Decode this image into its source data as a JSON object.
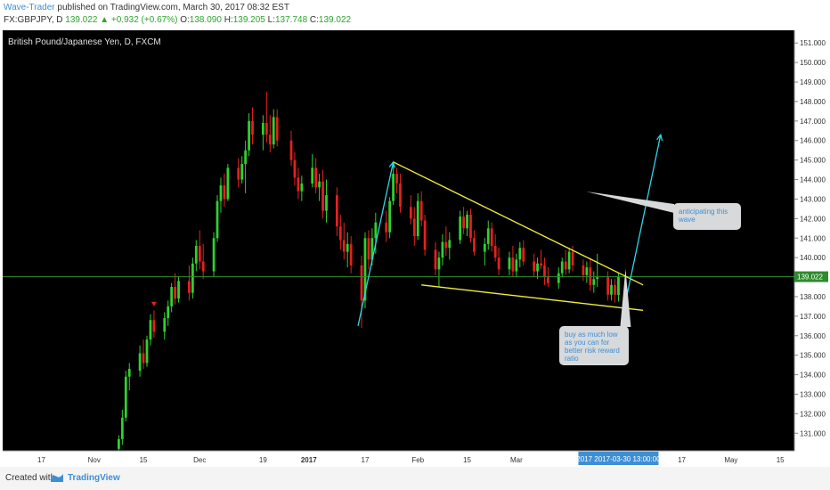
{
  "header": {
    "author": "Wave-Trader",
    "published": "published on TradingView.com, March 30, 2017 08:32 EST",
    "symbol": "FX:GBPJPY, D",
    "last": "139.022",
    "change": "▲ +0.932 (+0.67%)",
    "open_label": "O:",
    "open": "138.090",
    "high_label": "H:",
    "high": "139.205",
    "low_label": "L:",
    "low": "137.748",
    "close_label": "C:",
    "close": "139.022"
  },
  "footer": {
    "created_with": "Created with",
    "brand": "TradingView"
  },
  "colors": {
    "background": "#000000",
    "up": "#2fd12f",
    "down": "#e3211f",
    "trendline": "#f4ef3c",
    "arrow": "#2fd6e6",
    "priceline": "#2e8b2e",
    "axis_bg": "#ffffff"
  },
  "chart_data": {
    "type": "candlestick",
    "title": "British Pound/Japanese Yen, D, FXCM",
    "y_axis": {
      "min": 130,
      "max": 151,
      "ticks": [
        131,
        132,
        133,
        134,
        135,
        136,
        137,
        138,
        139,
        140,
        141,
        142,
        143,
        144,
        145,
        146,
        147,
        148,
        149,
        150,
        151
      ],
      "tick_labels": [
        "131.000",
        "132.000",
        "133.000",
        "134.000",
        "135.000",
        "136.000",
        "137.000",
        "138.000",
        "139.000",
        "140.000",
        "141.000",
        "142.000",
        "143.000",
        "144.000",
        "145.000",
        "146.000",
        "147.000",
        "148.000",
        "149.000",
        "150.000",
        "151.000"
      ]
    },
    "x_axis": {
      "start_date": "2016-10-06",
      "end_date": "2017-05-19",
      "ticks": [
        {
          "date": "2016-10-17",
          "label": "17"
        },
        {
          "date": "2016-11-01",
          "label": "Nov"
        },
        {
          "date": "2016-11-15",
          "label": "15"
        },
        {
          "date": "2016-12-01",
          "label": "Dec"
        },
        {
          "date": "2016-12-19",
          "label": "19"
        },
        {
          "date": "2017-01-01",
          "label": "2017"
        },
        {
          "date": "2017-01-17",
          "label": "17"
        },
        {
          "date": "2017-02-01",
          "label": "Feb"
        },
        {
          "date": "2017-02-15",
          "label": "15"
        },
        {
          "date": "2017-03-01",
          "label": "Mar"
        },
        {
          "date": "2017-04-17",
          "label": "17"
        },
        {
          "date": "2017-05-01",
          "label": "May"
        },
        {
          "date": "2017-05-15",
          "label": "15"
        }
      ],
      "cursor_label": "2017 2017-03-30 13:00:00",
      "cursor_date": "2017-03-30"
    },
    "last_price": 139.022,
    "last_price_label": "139.022",
    "candles": [
      {
        "date": "2016-11-08",
        "o": 130.2,
        "h": 130.9,
        "l": 130.0,
        "c": 130.7
      },
      {
        "date": "2016-11-09",
        "o": 130.7,
        "h": 132.2,
        "l": 130.4,
        "c": 131.8
      },
      {
        "date": "2016-11-10",
        "o": 131.8,
        "h": 134.2,
        "l": 131.6,
        "c": 133.9
      },
      {
        "date": "2016-11-11",
        "o": 133.9,
        "h": 134.6,
        "l": 133.2,
        "c": 134.3
      },
      {
        "date": "2016-11-14",
        "o": 134.2,
        "h": 135.5,
        "l": 133.9,
        "c": 135.1
      },
      {
        "date": "2016-11-15",
        "o": 135.1,
        "h": 135.8,
        "l": 134.3,
        "c": 134.6
      },
      {
        "date": "2016-11-16",
        "o": 134.6,
        "h": 136.0,
        "l": 134.4,
        "c": 135.8
      },
      {
        "date": "2016-11-17",
        "o": 135.8,
        "h": 137.1,
        "l": 135.5,
        "c": 136.8
      },
      {
        "date": "2016-11-18",
        "o": 136.8,
        "h": 137.3,
        "l": 135.9,
        "c": 136.2
      },
      {
        "date": "2016-11-21",
        "o": 136.2,
        "h": 137.2,
        "l": 135.8,
        "c": 136.9
      },
      {
        "date": "2016-11-22",
        "o": 136.9,
        "h": 137.8,
        "l": 136.5,
        "c": 137.5
      },
      {
        "date": "2016-11-23",
        "o": 137.5,
        "h": 138.7,
        "l": 137.2,
        "c": 138.5
      },
      {
        "date": "2016-11-24",
        "o": 138.5,
        "h": 139.2,
        "l": 137.6,
        "c": 137.9
      },
      {
        "date": "2016-11-25",
        "o": 137.9,
        "h": 139.0,
        "l": 137.7,
        "c": 138.8
      },
      {
        "date": "2016-11-28",
        "o": 138.8,
        "h": 139.6,
        "l": 137.8,
        "c": 138.2
      },
      {
        "date": "2016-11-29",
        "o": 138.2,
        "h": 140.0,
        "l": 137.9,
        "c": 139.7
      },
      {
        "date": "2016-11-30",
        "o": 139.7,
        "h": 140.9,
        "l": 139.3,
        "c": 140.6
      },
      {
        "date": "2016-12-01",
        "o": 140.6,
        "h": 141.4,
        "l": 139.4,
        "c": 139.8
      },
      {
        "date": "2016-12-02",
        "o": 139.8,
        "h": 140.7,
        "l": 138.9,
        "c": 139.3
      },
      {
        "date": "2016-12-05",
        "o": 139.3,
        "h": 141.3,
        "l": 139.0,
        "c": 141.0
      },
      {
        "date": "2016-12-06",
        "o": 141.0,
        "h": 143.2,
        "l": 140.8,
        "c": 142.9
      },
      {
        "date": "2016-12-07",
        "o": 142.9,
        "h": 144.1,
        "l": 142.3,
        "c": 143.7
      },
      {
        "date": "2016-12-08",
        "o": 143.7,
        "h": 144.3,
        "l": 142.6,
        "c": 143.0
      },
      {
        "date": "2016-12-09",
        "o": 143.0,
        "h": 144.8,
        "l": 142.9,
        "c": 144.6
      },
      {
        "date": "2016-12-12",
        "o": 144.6,
        "h": 145.1,
        "l": 143.6,
        "c": 144.0
      },
      {
        "date": "2016-12-13",
        "o": 144.0,
        "h": 145.2,
        "l": 143.8,
        "c": 144.8
      },
      {
        "date": "2016-12-14",
        "o": 144.8,
        "h": 146.0,
        "l": 143.3,
        "c": 145.5
      },
      {
        "date": "2016-12-15",
        "o": 145.5,
        "h": 147.4,
        "l": 145.2,
        "c": 147.0
      },
      {
        "date": "2016-12-16",
        "o": 147.0,
        "h": 147.7,
        "l": 145.8,
        "c": 146.3
      },
      {
        "date": "2016-12-19",
        "o": 146.3,
        "h": 147.3,
        "l": 145.5,
        "c": 146.9
      },
      {
        "date": "2016-12-20",
        "o": 146.9,
        "h": 148.5,
        "l": 145.9,
        "c": 146.3
      },
      {
        "date": "2016-12-21",
        "o": 146.3,
        "h": 147.3,
        "l": 145.4,
        "c": 145.8
      },
      {
        "date": "2016-12-22",
        "o": 145.8,
        "h": 147.6,
        "l": 145.6,
        "c": 147.2
      },
      {
        "date": "2016-12-23",
        "o": 147.2,
        "h": 147.6,
        "l": 145.7,
        "c": 146.0
      },
      {
        "date": "2016-12-27",
        "o": 146.0,
        "h": 146.5,
        "l": 144.7,
        "c": 145.0
      },
      {
        "date": "2016-12-28",
        "o": 145.0,
        "h": 145.4,
        "l": 143.7,
        "c": 144.1
      },
      {
        "date": "2016-12-29",
        "o": 144.1,
        "h": 144.6,
        "l": 143.0,
        "c": 143.4
      },
      {
        "date": "2016-12-30",
        "o": 143.4,
        "h": 144.2,
        "l": 142.9,
        "c": 143.8
      },
      {
        "date": "2017-01-02",
        "o": 143.8,
        "h": 145.3,
        "l": 143.6,
        "c": 144.6
      },
      {
        "date": "2017-01-03",
        "o": 144.6,
        "h": 145.1,
        "l": 143.3,
        "c": 143.6
      },
      {
        "date": "2017-01-04",
        "o": 143.6,
        "h": 144.3,
        "l": 142.9,
        "c": 143.9
      },
      {
        "date": "2017-01-05",
        "o": 143.9,
        "h": 144.5,
        "l": 142.0,
        "c": 142.4
      },
      {
        "date": "2017-01-06",
        "o": 142.4,
        "h": 144.0,
        "l": 141.8,
        "c": 143.2
      },
      {
        "date": "2017-01-09",
        "o": 143.2,
        "h": 143.6,
        "l": 141.1,
        "c": 141.6
      },
      {
        "date": "2017-01-10",
        "o": 141.6,
        "h": 142.2,
        "l": 140.4,
        "c": 140.9
      },
      {
        "date": "2017-01-11",
        "o": 140.9,
        "h": 141.8,
        "l": 139.9,
        "c": 140.3
      },
      {
        "date": "2017-01-12",
        "o": 140.3,
        "h": 141.3,
        "l": 139.5,
        "c": 140.7
      },
      {
        "date": "2017-01-13",
        "o": 140.7,
        "h": 141.1,
        "l": 139.2,
        "c": 139.6
      },
      {
        "date": "2017-01-16",
        "o": 139.6,
        "h": 140.1,
        "l": 136.4,
        "c": 137.8
      },
      {
        "date": "2017-01-17",
        "o": 137.8,
        "h": 141.3,
        "l": 137.4,
        "c": 141.0
      },
      {
        "date": "2017-01-18",
        "o": 141.0,
        "h": 141.4,
        "l": 139.4,
        "c": 139.9
      },
      {
        "date": "2017-01-19",
        "o": 139.9,
        "h": 141.5,
        "l": 139.6,
        "c": 141.0
      },
      {
        "date": "2017-01-20",
        "o": 141.0,
        "h": 142.3,
        "l": 140.2,
        "c": 141.8
      },
      {
        "date": "2017-01-23",
        "o": 141.8,
        "h": 142.4,
        "l": 140.8,
        "c": 141.3
      },
      {
        "date": "2017-01-24",
        "o": 141.3,
        "h": 143.1,
        "l": 141.0,
        "c": 142.9
      },
      {
        "date": "2017-01-25",
        "o": 142.9,
        "h": 144.9,
        "l": 142.7,
        "c": 144.3
      },
      {
        "date": "2017-01-26",
        "o": 144.3,
        "h": 144.6,
        "l": 143.3,
        "c": 143.8
      },
      {
        "date": "2017-01-27",
        "o": 143.8,
        "h": 144.3,
        "l": 142.3,
        "c": 142.6
      },
      {
        "date": "2017-01-30",
        "o": 142.6,
        "h": 143.2,
        "l": 141.7,
        "c": 142.0
      },
      {
        "date": "2017-01-31",
        "o": 142.0,
        "h": 142.6,
        "l": 140.6,
        "c": 141.1
      },
      {
        "date": "2017-02-01",
        "o": 141.1,
        "h": 143.3,
        "l": 140.9,
        "c": 142.9
      },
      {
        "date": "2017-02-02",
        "o": 142.9,
        "h": 143.4,
        "l": 141.6,
        "c": 141.9
      },
      {
        "date": "2017-02-03",
        "o": 141.9,
        "h": 142.2,
        "l": 140.1,
        "c": 140.4
      },
      {
        "date": "2017-02-06",
        "o": 140.4,
        "h": 140.8,
        "l": 139.1,
        "c": 139.4
      },
      {
        "date": "2017-02-07",
        "o": 139.4,
        "h": 140.3,
        "l": 138.5,
        "c": 140.0
      },
      {
        "date": "2017-02-08",
        "o": 140.0,
        "h": 141.2,
        "l": 139.6,
        "c": 140.8
      },
      {
        "date": "2017-02-09",
        "o": 140.8,
        "h": 141.6,
        "l": 140.1,
        "c": 140.5
      },
      {
        "date": "2017-02-10",
        "o": 140.5,
        "h": 141.3,
        "l": 139.9,
        "c": 140.9
      },
      {
        "date": "2017-02-13",
        "o": 140.9,
        "h": 142.4,
        "l": 140.7,
        "c": 142.1
      },
      {
        "date": "2017-02-14",
        "o": 142.1,
        "h": 142.6,
        "l": 141.2,
        "c": 141.5
      },
      {
        "date": "2017-02-15",
        "o": 141.5,
        "h": 142.4,
        "l": 141.1,
        "c": 142.2
      },
      {
        "date": "2017-02-16",
        "o": 142.2,
        "h": 142.5,
        "l": 140.8,
        "c": 141.0
      },
      {
        "date": "2017-02-17",
        "o": 141.0,
        "h": 141.4,
        "l": 140.1,
        "c": 140.3
      },
      {
        "date": "2017-02-20",
        "o": 140.3,
        "h": 141.0,
        "l": 139.6,
        "c": 140.7
      },
      {
        "date": "2017-02-21",
        "o": 140.7,
        "h": 141.9,
        "l": 140.4,
        "c": 141.5
      },
      {
        "date": "2017-02-22",
        "o": 141.5,
        "h": 141.8,
        "l": 140.3,
        "c": 140.6
      },
      {
        "date": "2017-02-23",
        "o": 140.6,
        "h": 141.2,
        "l": 139.8,
        "c": 140.0
      },
      {
        "date": "2017-02-24",
        "o": 140.0,
        "h": 140.5,
        "l": 139.1,
        "c": 139.4
      },
      {
        "date": "2017-02-27",
        "o": 139.4,
        "h": 140.3,
        "l": 139.1,
        "c": 140.0
      },
      {
        "date": "2017-02-28",
        "o": 140.0,
        "h": 140.6,
        "l": 139.0,
        "c": 139.3
      },
      {
        "date": "2017-03-01",
        "o": 139.3,
        "h": 140.2,
        "l": 139.0,
        "c": 139.9
      },
      {
        "date": "2017-03-02",
        "o": 139.9,
        "h": 140.8,
        "l": 139.5,
        "c": 140.5
      },
      {
        "date": "2017-03-03",
        "o": 140.5,
        "h": 140.9,
        "l": 139.6,
        "c": 139.8
      },
      {
        "date": "2017-03-06",
        "o": 139.8,
        "h": 140.2,
        "l": 139.0,
        "c": 139.3
      },
      {
        "date": "2017-03-07",
        "o": 139.3,
        "h": 140.0,
        "l": 138.9,
        "c": 139.7
      },
      {
        "date": "2017-03-08",
        "o": 139.7,
        "h": 140.4,
        "l": 139.4,
        "c": 139.6
      },
      {
        "date": "2017-03-09",
        "o": 139.6,
        "h": 140.0,
        "l": 138.6,
        "c": 139.0
      },
      {
        "date": "2017-03-10",
        "o": 139.0,
        "h": 139.5,
        "l": 138.5,
        "c": 138.7
      },
      {
        "date": "2017-03-13",
        "o": 138.7,
        "h": 139.5,
        "l": 138.4,
        "c": 139.2
      },
      {
        "date": "2017-03-14",
        "o": 139.2,
        "h": 140.0,
        "l": 139.0,
        "c": 139.8
      },
      {
        "date": "2017-03-15",
        "o": 139.8,
        "h": 140.4,
        "l": 139.1,
        "c": 139.4
      },
      {
        "date": "2017-03-16",
        "o": 139.4,
        "h": 140.5,
        "l": 139.2,
        "c": 140.3
      },
      {
        "date": "2017-03-17",
        "o": 140.3,
        "h": 140.6,
        "l": 139.3,
        "c": 139.6
      },
      {
        "date": "2017-03-20",
        "o": 139.6,
        "h": 139.9,
        "l": 138.8,
        "c": 139.1
      },
      {
        "date": "2017-03-21",
        "o": 139.1,
        "h": 139.8,
        "l": 138.7,
        "c": 139.5
      },
      {
        "date": "2017-03-22",
        "o": 139.5,
        "h": 140.0,
        "l": 138.3,
        "c": 138.6
      },
      {
        "date": "2017-03-23",
        "o": 138.6,
        "h": 139.3,
        "l": 138.2,
        "c": 138.9
      },
      {
        "date": "2017-03-24",
        "o": 138.9,
        "h": 140.2,
        "l": 138.5,
        "c": 139.0
      },
      {
        "date": "2017-03-27",
        "o": 139.0,
        "h": 139.3,
        "l": 137.8,
        "c": 138.1
      },
      {
        "date": "2017-03-28",
        "o": 138.1,
        "h": 138.9,
        "l": 137.8,
        "c": 138.6
      },
      {
        "date": "2017-03-29",
        "o": 138.6,
        "h": 138.9,
        "l": 137.7,
        "c": 138.1
      },
      {
        "date": "2017-03-30",
        "o": 138.09,
        "h": 139.205,
        "l": 137.748,
        "c": 139.022
      }
    ],
    "signals": [
      {
        "date": "2016-11-18",
        "price": 137.6,
        "marker": "down-triangle"
      }
    ],
    "trendlines": [
      {
        "name": "upper",
        "from": {
          "date": "2017-01-25",
          "price": 144.9
        },
        "to": {
          "date": "2017-04-06",
          "price": 138.6
        }
      },
      {
        "name": "lower",
        "from": {
          "date": "2017-02-02",
          "price": 138.6
        },
        "to": {
          "date": "2017-04-06",
          "price": 137.3
        }
      }
    ],
    "arrows": [
      {
        "name": "rally-arrow",
        "from": {
          "date": "2017-01-15",
          "price": 136.5
        },
        "to": {
          "date": "2017-01-25",
          "price": 144.9
        }
      },
      {
        "name": "projection-arrow",
        "from": {
          "date": "2017-04-01",
          "price": 137.7
        },
        "to": {
          "date": "2017-04-11",
          "price": 146.3
        }
      }
    ],
    "annotations": [
      {
        "name": "anticipation-note",
        "text": "anticipating this wave",
        "date": "2017-04-05",
        "price": 142.2
      },
      {
        "name": "buy-note",
        "text": "buy as much low as you can for better risk reward ratio",
        "date": "2017-03-31",
        "price": 137.6
      }
    ]
  }
}
